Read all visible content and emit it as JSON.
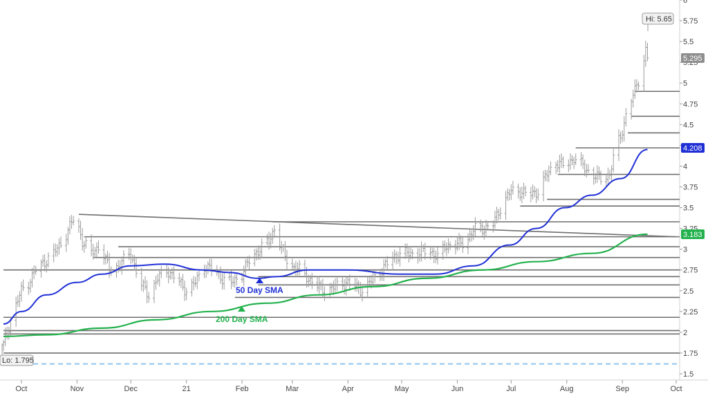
{
  "chart_data": {
    "type": "ohlc",
    "title": "",
    "ylim": [
      1.5,
      6.0
    ],
    "ytick_labels": [
      "1.5",
      "1.75",
      "2",
      "2.25",
      "2.5",
      "2.75",
      "3",
      "3.25",
      "3.5",
      "3.75",
      "4",
      "4.25",
      "4.5",
      "4.75",
      "5",
      "5.25",
      "5.5",
      "5.75",
      "6"
    ],
    "xtick_labels": [
      "Oct",
      "Nov",
      "Dec",
      "21",
      "Feb",
      "Mar",
      "Apr",
      "May",
      "Jun",
      "Jul",
      "Aug",
      "Sep",
      "Oct"
    ],
    "x_range": [
      "2020-09-21",
      "2021-10-01"
    ],
    "x_ticks": [
      "2020-10-01",
      "2020-11-01",
      "2020-12-01",
      "2021-01-01",
      "2021-02-01",
      "2021-03-01",
      "2021-04-01",
      "2021-05-01",
      "2021-06-01",
      "2021-07-01",
      "2021-08-01",
      "2021-09-01",
      "2021-10-01"
    ],
    "price_path": [
      [
        "2020-09-21",
        1.85
      ],
      [
        "2020-09-25",
        2.15
      ],
      [
        "2020-10-01",
        2.5
      ],
      [
        "2020-10-05",
        2.6
      ],
      [
        "2020-10-09",
        2.75
      ],
      [
        "2020-10-14",
        2.85
      ],
      [
        "2020-10-19",
        2.95
      ],
      [
        "2020-10-24",
        3.1
      ],
      [
        "2020-10-31",
        3.4
      ],
      [
        "2020-11-04",
        3.1
      ],
      [
        "2020-11-09",
        2.95
      ],
      [
        "2020-11-14",
        3.05
      ],
      [
        "2020-11-19",
        2.75
      ],
      [
        "2020-11-24",
        2.8
      ],
      [
        "2020-12-01",
        2.95
      ],
      [
        "2020-12-06",
        2.6
      ],
      [
        "2020-12-11",
        2.45
      ],
      [
        "2020-12-16",
        2.65
      ],
      [
        "2020-12-21",
        2.75
      ],
      [
        "2020-12-26",
        2.65
      ],
      [
        "2021-01-01",
        2.5
      ],
      [
        "2021-01-06",
        2.6
      ],
      [
        "2021-01-11",
        2.8
      ],
      [
        "2021-01-16",
        2.75
      ],
      [
        "2021-01-21",
        2.65
      ],
      [
        "2021-01-26",
        2.6
      ],
      [
        "2021-02-01",
        2.7
      ],
      [
        "2021-02-06",
        2.9
      ],
      [
        "2021-02-11",
        3.0
      ],
      [
        "2021-02-16",
        3.1
      ],
      [
        "2021-02-19",
        3.25
      ],
      [
        "2021-02-23",
        3.0
      ],
      [
        "2021-02-28",
        2.8
      ],
      [
        "2021-03-05",
        2.75
      ],
      [
        "2021-03-10",
        2.65
      ],
      [
        "2021-03-15",
        2.55
      ],
      [
        "2021-03-20",
        2.5
      ],
      [
        "2021-03-25",
        2.55
      ],
      [
        "2021-03-31",
        2.6
      ],
      [
        "2021-04-05",
        2.55
      ],
      [
        "2021-04-10",
        2.5
      ],
      [
        "2021-04-15",
        2.65
      ],
      [
        "2021-04-20",
        2.75
      ],
      [
        "2021-04-26",
        2.9
      ],
      [
        "2021-05-01",
        2.95
      ],
      [
        "2021-05-06",
        2.95
      ],
      [
        "2021-05-11",
        2.95
      ],
      [
        "2021-05-16",
        3.0
      ],
      [
        "2021-05-21",
        2.9
      ],
      [
        "2021-05-26",
        3.05
      ],
      [
        "2021-06-01",
        3.05
      ],
      [
        "2021-06-06",
        3.1
      ],
      [
        "2021-06-11",
        3.25
      ],
      [
        "2021-06-16",
        3.25
      ],
      [
        "2021-06-21",
        3.3
      ],
      [
        "2021-06-26",
        3.55
      ],
      [
        "2021-07-01",
        3.7
      ],
      [
        "2021-07-06",
        3.7
      ],
      [
        "2021-07-11",
        3.65
      ],
      [
        "2021-07-16",
        3.7
      ],
      [
        "2021-07-21",
        3.9
      ],
      [
        "2021-07-26",
        4.05
      ],
      [
        "2021-07-31",
        4.0
      ],
      [
        "2021-08-05",
        4.1
      ],
      [
        "2021-08-10",
        4.0
      ],
      [
        "2021-08-15",
        3.9
      ],
      [
        "2021-08-20",
        3.85
      ],
      [
        "2021-08-25",
        3.9
      ],
      [
        "2021-08-28",
        4.2
      ],
      [
        "2021-08-31",
        4.35
      ],
      [
        "2021-09-04",
        4.7
      ],
      [
        "2021-09-08",
        4.9
      ],
      [
        "2021-09-11",
        5.1
      ],
      [
        "2021-09-14",
        5.4
      ],
      [
        "2021-09-15",
        5.3
      ]
    ],
    "sma50_path": [
      [
        "2020-09-21",
        2.1
      ],
      [
        "2020-10-01",
        2.25
      ],
      [
        "2020-10-15",
        2.45
      ],
      [
        "2020-11-01",
        2.6
      ],
      [
        "2020-11-15",
        2.7
      ],
      [
        "2020-12-01",
        2.8
      ],
      [
        "2020-12-20",
        2.82
      ],
      [
        "2021-01-10",
        2.75
      ],
      [
        "2021-01-25",
        2.72
      ],
      [
        "2021-02-10",
        2.65
      ],
      [
        "2021-02-20",
        2.67
      ],
      [
        "2021-03-10",
        2.75
      ],
      [
        "2021-03-31",
        2.75
      ],
      [
        "2021-04-30",
        2.7
      ],
      [
        "2021-05-20",
        2.7
      ],
      [
        "2021-06-10",
        2.8
      ],
      [
        "2021-06-30",
        3.05
      ],
      [
        "2021-07-15",
        3.25
      ],
      [
        "2021-07-31",
        3.5
      ],
      [
        "2021-08-15",
        3.65
      ],
      [
        "2021-08-31",
        3.85
      ],
      [
        "2021-09-15",
        4.2
      ]
    ],
    "sma200_path": [
      [
        "2020-09-21",
        1.95
      ],
      [
        "2020-10-15",
        1.97
      ],
      [
        "2020-11-15",
        2.05
      ],
      [
        "2020-12-15",
        2.15
      ],
      [
        "2021-01-15",
        2.25
      ],
      [
        "2021-02-15",
        2.35
      ],
      [
        "2021-03-15",
        2.45
      ],
      [
        "2021-04-15",
        2.55
      ],
      [
        "2021-05-15",
        2.65
      ],
      [
        "2021-06-15",
        2.75
      ],
      [
        "2021-07-15",
        2.85
      ],
      [
        "2021-08-15",
        2.95
      ],
      [
        "2021-09-15",
        3.18
      ]
    ],
    "trendline": [
      [
        "2020-11-02",
        3.42
      ],
      [
        "2021-10-01",
        3.15
      ]
    ],
    "levels": [
      {
        "value": 4.9,
        "from": "2021-09-08"
      },
      {
        "value": 4.6,
        "from": "2021-09-06"
      },
      {
        "value": 4.4,
        "from": "2021-09-04"
      },
      {
        "value": 4.22,
        "from": "2021-08-06"
      },
      {
        "value": 3.9,
        "from": "2021-07-27"
      },
      {
        "value": 3.6,
        "from": "2021-07-21"
      },
      {
        "value": 3.52,
        "from": "2021-07-06"
      },
      {
        "value": 3.33,
        "from": "2021-02-18"
      },
      {
        "value": 3.15,
        "from": "2020-11-05"
      },
      {
        "value": 3.03,
        "from": "2020-11-24"
      },
      {
        "value": 2.9,
        "from": "2020-11-10"
      },
      {
        "value": 2.75,
        "from": "2020-09-21"
      },
      {
        "value": 2.67,
        "from": "2021-02-10"
      },
      {
        "value": 2.57,
        "from": "2021-02-10"
      },
      {
        "value": 2.42,
        "from": "2021-01-28"
      },
      {
        "value": 2.18,
        "from": "2020-09-21"
      },
      {
        "value": 2.02,
        "from": "2020-09-21"
      },
      {
        "value": 1.98,
        "from": "2020-09-21"
      },
      {
        "value": 1.75,
        "from": "2020-09-21"
      }
    ],
    "dashed_level": 1.62,
    "colors": {
      "price": "#9a9a9a",
      "sma50": "#1f2fd6",
      "sma200": "#22b14c",
      "levels": "#6e6e6e",
      "dashed": "#8ec5f0"
    }
  },
  "labels": {
    "hi": "Hi: 5.65",
    "lo": "Lo: 1.795",
    "last_price": "5.295",
    "sma50_value": "4.208",
    "sma200_value": "3.183",
    "sma50_name": "50 Day SMA",
    "sma200_name": "200 Day SMA"
  }
}
